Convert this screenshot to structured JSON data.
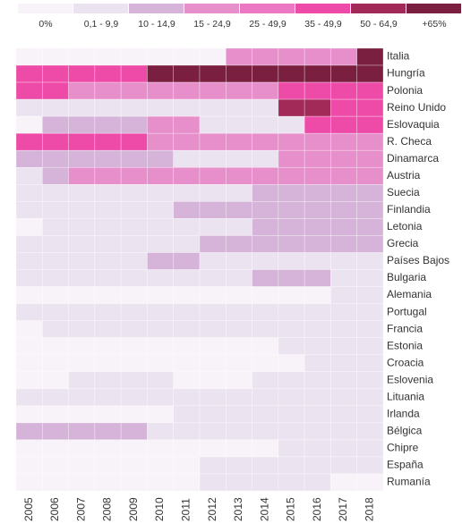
{
  "chart_data": {
    "type": "heatmap",
    "legend": {
      "labels": [
        "0%",
        "0,1 - 9,9",
        "10 - 14,9",
        "15 - 24,9",
        "25 - 49,9",
        "35 - 49,9",
        "50 - 64,9",
        "+65%"
      ],
      "colors": [
        "#f8f3f8",
        "#ece3f0",
        "#d6b4da",
        "#e78fcb",
        "#eb78c2",
        "#ee4ba8",
        "#a22a59",
        "#7b1f40"
      ]
    },
    "x": [
      "2005",
      "2006",
      "2007",
      "2008",
      "2009",
      "2010",
      "2011",
      "2012",
      "2013",
      "2014",
      "2015",
      "2016",
      "2017",
      "2018"
    ],
    "y": [
      "Italia",
      "Hungría",
      "Polonia",
      "Reino Unido",
      "Eslovaquia",
      "R. Checa",
      "Dinamarca",
      "Austria",
      "Suecia",
      "Finlandia",
      "Letonia",
      "Grecia",
      "Países Bajos",
      "Bulgaria",
      "Alemania",
      "Portugal",
      "Francia",
      "Estonia",
      "Croacia",
      "Eslovenia",
      "Lituania",
      "Irlanda",
      "Bélgica",
      "Chipre",
      "España",
      "Rumanía"
    ],
    "values": [
      [
        0,
        0,
        0,
        0,
        0,
        0,
        0,
        0,
        3,
        3,
        3,
        3,
        3,
        7
      ],
      [
        5,
        5,
        5,
        5,
        5,
        7,
        7,
        7,
        7,
        7,
        7,
        7,
        7,
        7
      ],
      [
        5,
        5,
        3,
        3,
        3,
        3,
        3,
        3,
        3,
        3,
        5,
        5,
        5,
        5
      ],
      [
        1,
        1,
        1,
        1,
        1,
        1,
        1,
        1,
        1,
        1,
        6,
        6,
        5,
        5
      ],
      [
        0,
        2,
        2,
        2,
        2,
        3,
        3,
        1,
        1,
        1,
        1,
        5,
        5,
        5
      ],
      [
        5,
        5,
        5,
        5,
        5,
        3,
        3,
        3,
        3,
        3,
        3,
        3,
        3,
        3
      ],
      [
        2,
        2,
        2,
        2,
        2,
        2,
        1,
        1,
        1,
        1,
        3,
        3,
        3,
        3
      ],
      [
        1,
        2,
        3,
        3,
        3,
        3,
        3,
        3,
        3,
        3,
        3,
        3,
        3,
        3
      ],
      [
        1,
        1,
        1,
        1,
        1,
        1,
        1,
        1,
        1,
        2,
        2,
        2,
        2,
        2
      ],
      [
        1,
        1,
        1,
        1,
        1,
        1,
        2,
        2,
        2,
        2,
        2,
        2,
        2,
        2
      ],
      [
        0,
        1,
        1,
        1,
        1,
        1,
        1,
        1,
        1,
        2,
        2,
        2,
        2,
        2
      ],
      [
        1,
        1,
        1,
        1,
        1,
        1,
        1,
        2,
        2,
        2,
        2,
        2,
        2,
        2
      ],
      [
        1,
        1,
        1,
        1,
        1,
        2,
        2,
        1,
        1,
        1,
        1,
        1,
        1,
        1
      ],
      [
        1,
        1,
        1,
        1,
        1,
        1,
        1,
        1,
        1,
        2,
        2,
        2,
        1,
        1
      ],
      [
        0,
        0,
        0,
        0,
        0,
        0,
        0,
        0,
        0,
        0,
        0,
        0,
        1,
        1
      ],
      [
        1,
        1,
        1,
        1,
        1,
        1,
        1,
        1,
        1,
        1,
        1,
        1,
        1,
        1
      ],
      [
        0,
        1,
        1,
        1,
        1,
        1,
        1,
        1,
        1,
        1,
        1,
        1,
        1,
        1
      ],
      [
        0,
        0,
        0,
        0,
        0,
        0,
        0,
        0,
        0,
        0,
        1,
        1,
        1,
        1
      ],
      [
        0,
        0,
        0,
        0,
        0,
        0,
        0,
        0,
        0,
        0,
        0,
        1,
        1,
        1
      ],
      [
        0,
        0,
        1,
        1,
        1,
        1,
        0,
        0,
        0,
        1,
        1,
        1,
        1,
        1
      ],
      [
        1,
        1,
        1,
        1,
        1,
        1,
        1,
        1,
        1,
        1,
        1,
        1,
        1,
        1
      ],
      [
        0,
        0,
        0,
        0,
        0,
        0,
        1,
        1,
        1,
        1,
        1,
        1,
        1,
        1
      ],
      [
        2,
        2,
        2,
        2,
        2,
        1,
        1,
        1,
        1,
        1,
        1,
        1,
        1,
        1
      ],
      [
        0,
        0,
        0,
        0,
        0,
        0,
        0,
        0,
        0,
        0,
        1,
        1,
        1,
        1
      ],
      [
        0,
        0,
        0,
        0,
        0,
        0,
        0,
        1,
        1,
        1,
        1,
        1,
        1,
        1
      ],
      [
        0,
        0,
        0,
        0,
        0,
        0,
        0,
        1,
        1,
        1,
        1,
        1,
        0,
        0
      ]
    ]
  }
}
